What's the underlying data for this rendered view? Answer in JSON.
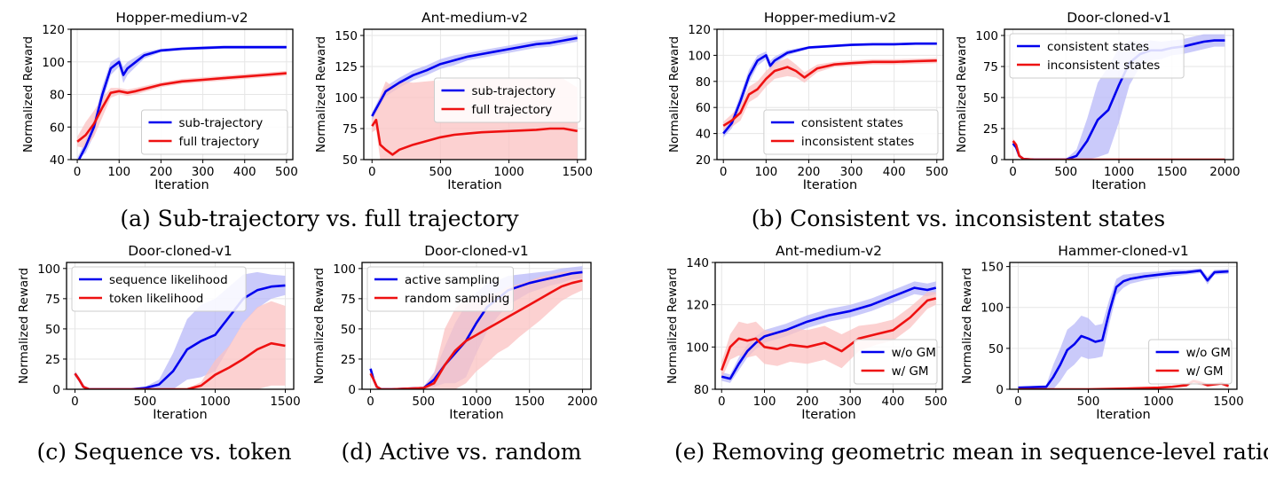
{
  "captions": [
    "(a) Sub-trajectory vs. full trajectory",
    "(b) Consistent vs. inconsistent states",
    "(c) Sequence vs. token",
    "(d) Active vs. random",
    "(e) Removing geometric mean in sequence-level ratio"
  ],
  "colors": {
    "blue": "#0000ee",
    "red": "#ee1111",
    "blue_band": "#b8b8f8",
    "red_band": "#fbc2c2"
  },
  "chart_data": [
    {
      "type": "line",
      "title": "Hopper-medium-v2",
      "xlabel": "Iteration",
      "ylabel": "Normalized Reward",
      "xlim": [
        -15,
        515
      ],
      "ylim": [
        40,
        120
      ],
      "xticks": [
        0,
        100,
        200,
        300,
        400,
        500
      ],
      "yticks": [
        40,
        60,
        80,
        100,
        120
      ],
      "legend": "bottom-right",
      "series": [
        {
          "name": "sub-trajectory",
          "color": "blue",
          "x": [
            0,
            20,
            40,
            60,
            80,
            100,
            110,
            120,
            140,
            160,
            200,
            250,
            300,
            350,
            400,
            450,
            500
          ],
          "y": [
            38,
            48,
            60,
            80,
            96,
            100,
            92,
            96,
            100,
            104,
            107,
            108,
            108.5,
            109,
            109,
            109,
            109
          ],
          "band": [
            3,
            4,
            5,
            5,
            4,
            3,
            5,
            4,
            3,
            2,
            1,
            1,
            1,
            1,
            1,
            1,
            1
          ]
        },
        {
          "name": "full trajectory",
          "color": "red",
          "x": [
            0,
            20,
            40,
            60,
            80,
            100,
            120,
            140,
            200,
            250,
            300,
            350,
            400,
            450,
            500
          ],
          "y": [
            51,
            55,
            62,
            72,
            81,
            82,
            81,
            82,
            86,
            88,
            89,
            90,
            91,
            92,
            93
          ],
          "band": [
            3,
            8,
            8,
            6,
            3,
            2,
            2,
            2,
            1.5,
            1.5,
            1.5,
            1.5,
            1.5,
            1.5,
            1.5
          ]
        }
      ]
    },
    {
      "type": "line",
      "title": "Ant-medium-v2",
      "xlabel": "Iteration",
      "ylabel": "Normalized Reward",
      "xlim": [
        -60,
        1560
      ],
      "ylim": [
        50,
        155
      ],
      "xticks": [
        0,
        500,
        1000,
        1500
      ],
      "yticks": [
        50,
        75,
        100,
        125,
        150
      ],
      "legend": "right",
      "series": [
        {
          "name": "sub-trajectory",
          "color": "blue",
          "x": [
            0,
            50,
            100,
            200,
            300,
            400,
            500,
            600,
            700,
            800,
            900,
            1000,
            1100,
            1200,
            1300,
            1400,
            1500
          ],
          "y": [
            85,
            95,
            105,
            112,
            118,
            122,
            127,
            130,
            133,
            135,
            137,
            139,
            141,
            143,
            144,
            146,
            148
          ],
          "band": [
            3,
            4,
            4,
            4,
            4,
            4,
            4,
            4,
            3,
            3,
            3,
            3,
            3,
            3,
            3,
            3,
            3
          ]
        },
        {
          "name": "full trajectory",
          "color": "red",
          "x": [
            0,
            30,
            60,
            100,
            150,
            200,
            300,
            400,
            500,
            600,
            700,
            800,
            1000,
            1200,
            1300,
            1400,
            1500
          ],
          "y": [
            77,
            82,
            62,
            58,
            54,
            58,
            62,
            65,
            68,
            70,
            71,
            72,
            73,
            74,
            75,
            75,
            73
          ],
          "band": [
            5,
            8,
            40,
            55,
            55,
            55,
            50,
            48,
            46,
            45,
            44,
            43,
            42,
            41,
            41,
            40,
            35
          ]
        }
      ]
    },
    {
      "type": "line",
      "title": "Hopper-medium-v2",
      "xlabel": "Iteration",
      "ylabel": "Normalized Reward",
      "xlim": [
        -15,
        515
      ],
      "ylim": [
        20,
        120
      ],
      "xticks": [
        0,
        100,
        200,
        300,
        400,
        500
      ],
      "yticks": [
        20,
        40,
        60,
        80,
        100,
        120
      ],
      "legend": "bottom-right",
      "series": [
        {
          "name": "consistent states",
          "color": "blue",
          "x": [
            0,
            20,
            40,
            60,
            80,
            100,
            110,
            120,
            150,
            200,
            250,
            300,
            350,
            400,
            450,
            500
          ],
          "y": [
            40,
            48,
            65,
            84,
            96,
            100,
            92,
            96,
            102,
            106,
            107,
            108,
            108.5,
            108.5,
            109,
            109
          ],
          "band": [
            3,
            4,
            5,
            5,
            4,
            3,
            4,
            3,
            2,
            1,
            1,
            1,
            1,
            1,
            1,
            1
          ]
        },
        {
          "name": "inconsistent states",
          "color": "red",
          "x": [
            0,
            20,
            40,
            60,
            80,
            100,
            120,
            150,
            170,
            190,
            220,
            260,
            300,
            350,
            400,
            450,
            500
          ],
          "y": [
            46,
            50,
            56,
            70,
            74,
            82,
            88,
            91,
            88,
            83,
            90,
            93,
            94,
            95,
            95,
            95.5,
            96
          ],
          "band": [
            3,
            5,
            6,
            6,
            6,
            6,
            6,
            7,
            5,
            4,
            3,
            2,
            2,
            2,
            2,
            2,
            2
          ]
        }
      ]
    },
    {
      "type": "line",
      "title": "Door-cloned-v1",
      "xlabel": "Iteration",
      "ylabel": "Normalized Reward",
      "xlim": [
        -80,
        2080
      ],
      "ylim": [
        0,
        105
      ],
      "xticks": [
        0,
        500,
        1000,
        1500,
        2000
      ],
      "yticks": [
        0,
        25,
        50,
        75,
        100
      ],
      "legend": "top-left",
      "series": [
        {
          "name": "consistent states",
          "color": "blue",
          "x": [
            0,
            30,
            60,
            100,
            200,
            400,
            500,
            600,
            700,
            800,
            900,
            1000,
            1100,
            1200,
            1300,
            1400,
            1500,
            1600,
            1700,
            1800,
            1900,
            2000
          ],
          "y": [
            13,
            10,
            3,
            0.5,
            0,
            0,
            0,
            3,
            15,
            32,
            40,
            60,
            78,
            85,
            88,
            88,
            90,
            91,
            93,
            95,
            96,
            96
          ],
          "band": [
            2,
            2,
            1,
            0.5,
            0,
            0,
            0.5,
            5,
            18,
            30,
            35,
            30,
            18,
            10,
            8,
            7,
            6,
            6,
            6,
            6,
            5,
            5
          ]
        },
        {
          "name": "inconsistent states",
          "color": "red",
          "x": [
            0,
            30,
            60,
            100,
            200,
            500,
            1000,
            1500,
            2000
          ],
          "y": [
            15,
            12,
            3,
            0.5,
            0,
            0,
            0,
            0,
            0
          ],
          "band": [
            2,
            2,
            1,
            0.5,
            0,
            0,
            0,
            0,
            0
          ]
        }
      ]
    },
    {
      "type": "line",
      "title": "Door-cloned-v1",
      "xlabel": "Iteration",
      "ylabel": "Normalized Reward",
      "xlim": [
        -60,
        1560
      ],
      "ylim": [
        0,
        105
      ],
      "xticks": [
        0,
        500,
        1000,
        1500
      ],
      "yticks": [
        0,
        25,
        50,
        75,
        100
      ],
      "legend": "top-left",
      "series": [
        {
          "name": "sequence likelihood",
          "color": "blue",
          "x": [
            0,
            30,
            60,
            100,
            200,
            400,
            500,
            600,
            700,
            800,
            900,
            1000,
            1100,
            1200,
            1300,
            1400,
            1500
          ],
          "y": [
            13,
            8,
            2,
            0,
            0,
            0,
            1,
            4,
            15,
            33,
            40,
            45,
            60,
            75,
            82,
            85,
            86
          ],
          "band": [
            2,
            2,
            1,
            0,
            0,
            0.5,
            1,
            4,
            15,
            25,
            30,
            30,
            25,
            20,
            15,
            10,
            8
          ]
        },
        {
          "name": "token likelihood",
          "color": "red",
          "x": [
            0,
            30,
            60,
            100,
            200,
            800,
            900,
            1000,
            1100,
            1200,
            1300,
            1400,
            1500
          ],
          "y": [
            13,
            8,
            2,
            0,
            0,
            0,
            3,
            12,
            18,
            25,
            33,
            38,
            36
          ],
          "band": [
            2,
            2,
            1,
            0,
            0,
            0.5,
            3,
            12,
            18,
            30,
            35,
            35,
            33
          ]
        }
      ]
    },
    {
      "type": "line",
      "title": "Door-cloned-v1",
      "xlabel": "Iteration",
      "ylabel": "Normalized Reward",
      "xlim": [
        -80,
        2080
      ],
      "ylim": [
        0,
        105
      ],
      "xticks": [
        0,
        500,
        1000,
        1500,
        2000
      ],
      "yticks": [
        0,
        25,
        50,
        75,
        100
      ],
      "legend": "top-left",
      "series": [
        {
          "name": "active sampling",
          "color": "blue",
          "x": [
            0,
            30,
            60,
            100,
            200,
            500,
            600,
            700,
            800,
            900,
            1000,
            1100,
            1200,
            1300,
            1400,
            1500,
            1600,
            1700,
            1800,
            1900,
            2000
          ],
          "y": [
            17,
            8,
            2,
            0,
            0,
            1,
            8,
            20,
            30,
            40,
            55,
            68,
            75,
            82,
            85,
            88,
            90,
            92,
            94,
            96,
            97
          ],
          "band": [
            2,
            2,
            1,
            0,
            0,
            1,
            6,
            15,
            25,
            30,
            25,
            20,
            15,
            12,
            10,
            8,
            7,
            6,
            6,
            5,
            5
          ]
        },
        {
          "name": "random sampling",
          "color": "red",
          "x": [
            0,
            30,
            60,
            100,
            200,
            500,
            600,
            700,
            800,
            900,
            1000,
            1100,
            1200,
            1300,
            1400,
            1500,
            1600,
            1700,
            1800,
            1900,
            2000
          ],
          "y": [
            13,
            8,
            2,
            0,
            0,
            1,
            5,
            20,
            32,
            40,
            45,
            50,
            55,
            60,
            65,
            70,
            75,
            80,
            85,
            88,
            90
          ],
          "band": [
            2,
            2,
            1,
            0,
            0,
            1,
            8,
            30,
            35,
            35,
            30,
            28,
            25,
            25,
            22,
            20,
            18,
            15,
            12,
            10,
            8
          ]
        }
      ]
    },
    {
      "type": "line",
      "title": "Ant-medium-v2",
      "xlabel": "Iteration",
      "ylabel": "Normalized Reward",
      "xlim": [
        -15,
        515
      ],
      "ylim": [
        80,
        140
      ],
      "xticks": [
        0,
        100,
        200,
        300,
        400,
        500
      ],
      "yticks": [
        80,
        100,
        120,
        140
      ],
      "legend": "bottom-right",
      "series": [
        {
          "name": "w/o GM",
          "color": "blue",
          "x": [
            0,
            20,
            40,
            60,
            80,
            100,
            150,
            200,
            250,
            300,
            350,
            400,
            450,
            480,
            500
          ],
          "y": [
            86,
            85,
            92,
            98,
            102,
            105,
            108,
            112,
            115,
            117,
            120,
            124,
            128,
            127,
            128
          ],
          "band": [
            2,
            2,
            3,
            3,
            3,
            3,
            3,
            3,
            3,
            3,
            3,
            3,
            3,
            3,
            3
          ]
        },
        {
          "name": "w/ GM",
          "color": "red",
          "x": [
            0,
            20,
            40,
            60,
            80,
            100,
            130,
            160,
            200,
            240,
            280,
            320,
            360,
            400,
            440,
            480,
            500
          ],
          "y": [
            89,
            100,
            104,
            103,
            104,
            100,
            99,
            101,
            100,
            102,
            98,
            104,
            106,
            108,
            114,
            122,
            123
          ],
          "band": [
            4,
            6,
            8,
            8,
            8,
            8,
            8,
            8,
            8,
            8,
            8,
            6,
            5,
            5,
            5,
            4,
            3
          ]
        }
      ]
    },
    {
      "type": "line",
      "title": "Hammer-cloned-v1",
      "xlabel": "Iteration",
      "ylabel": "Normalized Reward",
      "xlim": [
        -60,
        1560
      ],
      "ylim": [
        0,
        155
      ],
      "xticks": [
        0,
        500,
        1000,
        1500
      ],
      "yticks": [
        0,
        50,
        100,
        150
      ],
      "legend": "bottom-right",
      "series": [
        {
          "name": "w/o GM",
          "color": "blue",
          "x": [
            0,
            200,
            250,
            300,
            350,
            400,
            450,
            500,
            550,
            600,
            650,
            700,
            750,
            800,
            900,
            1000,
            1100,
            1200,
            1300,
            1350,
            1400,
            1500
          ],
          "y": [
            2,
            3,
            15,
            30,
            48,
            55,
            65,
            62,
            58,
            60,
            95,
            125,
            132,
            135,
            138,
            140,
            142,
            143,
            145,
            133,
            143,
            144
          ],
          "band": [
            1,
            2,
            15,
            20,
            25,
            25,
            25,
            25,
            20,
            20,
            15,
            10,
            8,
            6,
            5,
            4,
            4,
            3,
            3,
            5,
            3,
            3
          ]
        },
        {
          "name": "w/ GM",
          "color": "red",
          "x": [
            0,
            500,
            800,
            1000,
            1100,
            1200,
            1250,
            1300,
            1350,
            1400,
            1450,
            1500
          ],
          "y": [
            0,
            0,
            1,
            2,
            3,
            5,
            10,
            8,
            5,
            6,
            7,
            4
          ],
          "band": [
            0,
            0,
            1,
            1,
            1,
            2,
            3,
            3,
            2,
            2,
            2,
            2
          ]
        }
      ]
    }
  ]
}
